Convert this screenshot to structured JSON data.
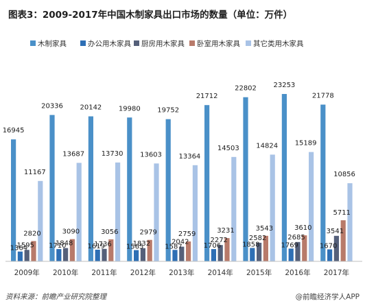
{
  "chart_data": {
    "type": "bar",
    "title": "图表3：2009-2017年中国木制家具出口市场的数量（单位：万件）",
    "categories": [
      "2009年",
      "2010年",
      "2011年",
      "2012年",
      "2013年",
      "2014年",
      "2015年",
      "2016年",
      "2017年"
    ],
    "series": [
      {
        "name": "木制家具",
        "color": "#4a90c8",
        "values": [
          16945,
          20336,
          20142,
          19980,
          19752,
          21712,
          22802,
          23253,
          21778
        ]
      },
      {
        "name": "办公用木家具",
        "color": "#2e6fb5",
        "values": [
          1364,
          1710,
          1619,
          1565,
          1587,
          1706,
          1858,
          1769,
          1670
        ]
      },
      {
        "name": "厨房用木家具",
        "color": "#55607a",
        "values": [
          1595,
          1848,
          1736,
          1832,
          2042,
          2272,
          2582,
          2685,
          3541
        ]
      },
      {
        "name": "卧室用木家具",
        "color": "#b87a6a",
        "values": [
          2820,
          3090,
          3056,
          2979,
          2759,
          3231,
          3543,
          3610,
          5711
        ]
      },
      {
        "name": "其它类用木家具",
        "color": "#a9c3e6",
        "values": [
          11167,
          13687,
          13730,
          13603,
          13364,
          14503,
          14824,
          15189,
          10856
        ]
      }
    ],
    "ylim": [
      0,
      24000
    ],
    "grid": false,
    "legend": "top"
  },
  "footer": {
    "source": "资料来源：前瞻产业研究院整理",
    "brand": "@前瞻经济学人APP"
  }
}
